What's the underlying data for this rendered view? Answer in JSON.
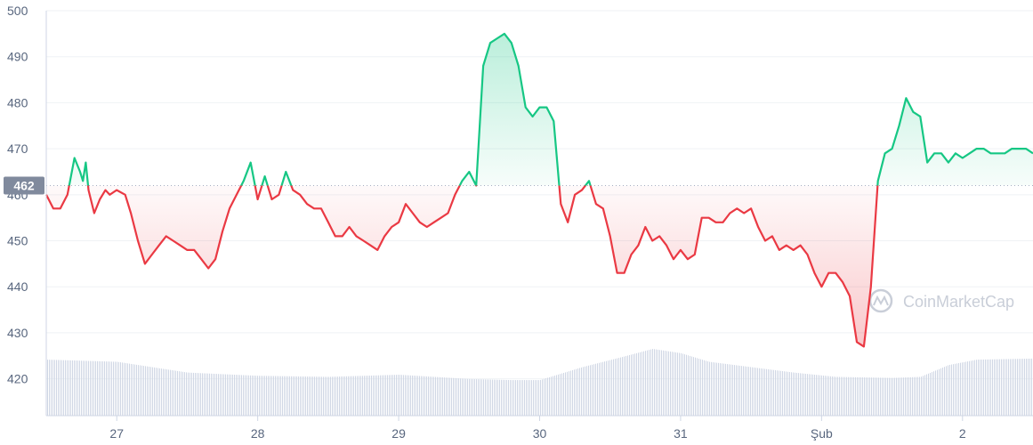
{
  "chart_data": {
    "type": "area",
    "title": "",
    "xlabel": "",
    "ylabel": "",
    "baseline": 462,
    "baseline_label": "462",
    "ylim": [
      412,
      500
    ],
    "y_ticks": [
      420,
      430,
      440,
      450,
      460,
      470,
      480,
      490,
      500
    ],
    "x_ticks": [
      {
        "label": "27",
        "t": 0.5
      },
      {
        "label": "28",
        "t": 1.5
      },
      {
        "label": "29",
        "t": 2.5
      },
      {
        "label": "30",
        "t": 3.5
      },
      {
        "label": "31",
        "t": 4.5
      },
      {
        "label": "Şub",
        "t": 5.5
      },
      {
        "label": "2",
        "t": 6.5
      }
    ],
    "xlim": [
      0,
      7.0
    ],
    "grid": true,
    "colors": {
      "up": "#16c784",
      "down": "#ea3943",
      "volume": "#cfd6e4",
      "grid": "#eff2f5",
      "badge": "#808a9d"
    },
    "watermark": "CoinMarketCap",
    "price_series": {
      "t": [
        0.0,
        0.05,
        0.1,
        0.15,
        0.2,
        0.24,
        0.26,
        0.28,
        0.3,
        0.34,
        0.38,
        0.42,
        0.45,
        0.5,
        0.56,
        0.6,
        0.65,
        0.7,
        0.75,
        0.8,
        0.85,
        0.9,
        0.95,
        1.0,
        1.05,
        1.1,
        1.15,
        1.2,
        1.25,
        1.3,
        1.35,
        1.4,
        1.45,
        1.5,
        1.55,
        1.6,
        1.65,
        1.7,
        1.75,
        1.8,
        1.85,
        1.9,
        1.95,
        2.0,
        2.05,
        2.1,
        2.15,
        2.2,
        2.25,
        2.3,
        2.35,
        2.4,
        2.45,
        2.5,
        2.55,
        2.6,
        2.65,
        2.7,
        2.75,
        2.8,
        2.85,
        2.9,
        2.95,
        3.0,
        3.05,
        3.1,
        3.15,
        3.2,
        3.25,
        3.3,
        3.35,
        3.4,
        3.45,
        3.5,
        3.55,
        3.6,
        3.65,
        3.7,
        3.75,
        3.8,
        3.85,
        3.9,
        3.95,
        4.0,
        4.05,
        4.1,
        4.15,
        4.2,
        4.25,
        4.3,
        4.35,
        4.4,
        4.45,
        4.5,
        4.55,
        4.6,
        4.65,
        4.7,
        4.75,
        4.8,
        4.85,
        4.9,
        4.95,
        5.0,
        5.05,
        5.1,
        5.15,
        5.2,
        5.25,
        5.3,
        5.35,
        5.4,
        5.45,
        5.5,
        5.55,
        5.6,
        5.65,
        5.7,
        5.75,
        5.8,
        5.85,
        5.9,
        5.95,
        6.0,
        6.05,
        6.1,
        6.15,
        6.2,
        6.25,
        6.3,
        6.35,
        6.4,
        6.45,
        6.5,
        6.55,
        6.6,
        6.65,
        6.7,
        6.75,
        6.8,
        6.85,
        6.9,
        6.95,
        7.0
      ],
      "price": [
        460,
        457,
        457,
        460,
        468,
        465,
        463,
        467,
        461,
        456,
        459,
        461,
        460,
        461,
        460,
        456,
        450,
        445,
        447,
        449,
        451,
        450,
        449,
        448,
        448,
        446,
        444,
        446,
        452,
        457,
        460,
        463,
        467,
        459,
        464,
        459,
        460,
        465,
        461,
        460,
        458,
        457,
        457,
        454,
        451,
        451,
        453,
        451,
        450,
        449,
        448,
        451,
        453,
        454,
        458,
        456,
        454,
        453,
        454,
        455,
        456,
        460,
        463,
        465,
        462,
        488,
        493,
        494,
        495,
        493,
        488,
        479,
        477,
        479,
        479,
        476,
        458,
        454,
        460,
        461,
        463,
        458,
        457,
        451,
        443,
        443,
        447,
        449,
        453,
        450,
        451,
        449,
        446,
        448,
        446,
        447,
        455,
        455,
        454,
        454,
        456,
        457,
        456,
        457,
        453,
        450,
        451,
        448,
        449,
        448,
        449,
        447,
        443,
        440,
        443,
        443,
        441,
        438,
        428,
        427,
        440,
        463,
        469,
        470,
        475,
        481,
        478,
        477,
        467,
        469,
        469,
        467,
        469,
        468,
        469,
        470,
        470,
        469,
        469,
        469,
        470,
        470,
        470,
        469,
        469,
        469
      ]
    },
    "volume_series": {
      "t": [
        0.0,
        0.5,
        1.0,
        1.5,
        2.0,
        2.5,
        3.0,
        3.3,
        3.5,
        3.8,
        4.1,
        4.3,
        4.5,
        4.7,
        5.0,
        5.3,
        5.6,
        6.0,
        6.2,
        6.4,
        6.6,
        7.0
      ],
      "volume": [
        52,
        50,
        40,
        37,
        36,
        38,
        34,
        33,
        33,
        45,
        55,
        62,
        58,
        50,
        45,
        40,
        36,
        35,
        36,
        47,
        52,
        53
      ]
    }
  }
}
